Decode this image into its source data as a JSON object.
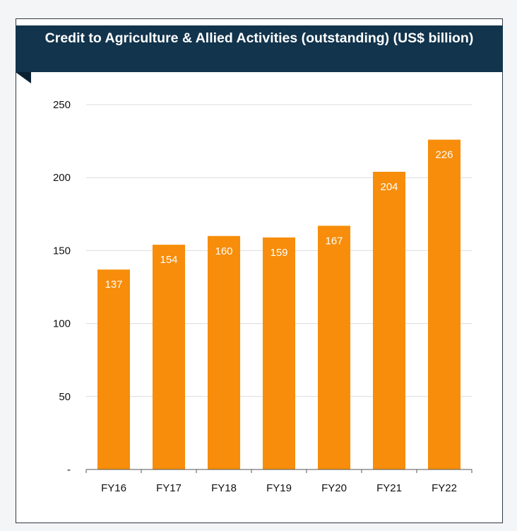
{
  "chart_data": {
    "type": "bar",
    "title": "Credit to Agriculture & Allied Activities (outstanding) (US$ billion)",
    "categories": [
      "FY16",
      "FY17",
      "FY18",
      "FY19",
      "FY20",
      "FY21",
      "FY22"
    ],
    "values": [
      137,
      154,
      160,
      159,
      167,
      204,
      226
    ],
    "data_labels": [
      "137",
      "154",
      "160",
      "159",
      "167",
      "204",
      "226"
    ],
    "y_ticks": [
      0,
      50,
      100,
      150,
      200,
      250
    ],
    "y_tick_labels": [
      "-",
      "50",
      "100",
      "150",
      "200",
      "250"
    ],
    "ylim": [
      0,
      250
    ],
    "grid": true,
    "colors": {
      "bar": "#f78d0a",
      "title_bg": "#12344d",
      "grid": "#dcdcdc"
    }
  }
}
